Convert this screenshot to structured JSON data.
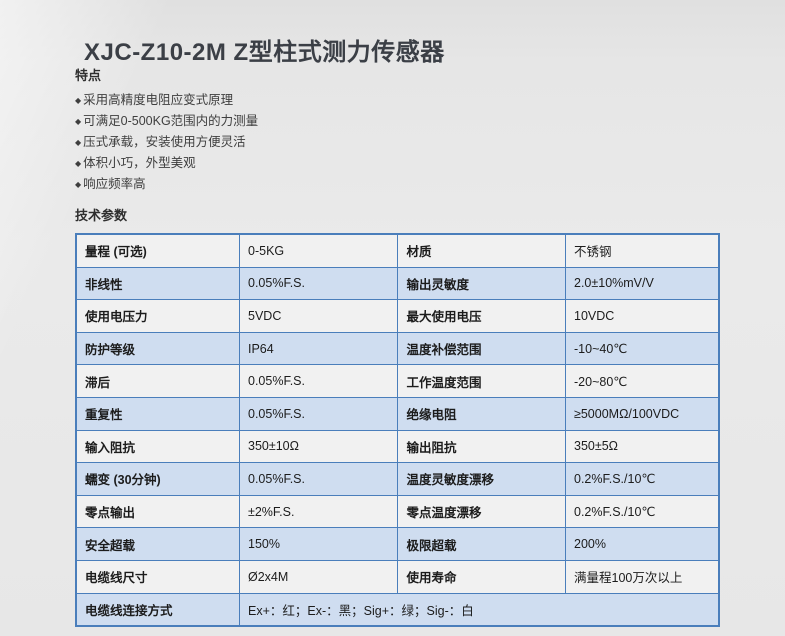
{
  "page": {
    "title": "XJC-Z10-2M Z型柱式测力传感器"
  },
  "features": {
    "heading": "特点",
    "bullet": "◆",
    "items": [
      "采用高精度电阻应变式原理",
      "可满足0-500KG范围内的力测量",
      "压式承载，安装使用方便灵活",
      "体积小巧，外型美观",
      "响应频率高"
    ]
  },
  "specs": {
    "heading": "技术参数",
    "table": {
      "rows": [
        {
          "cells": [
            "量程 (可选)",
            "0-5KG",
            "材质",
            "不锈钢"
          ]
        },
        {
          "cells": [
            "非线性",
            "0.05%F.S.",
            "输出灵敏度",
            "2.0±10%mV/V"
          ]
        },
        {
          "cells": [
            "使用电压力",
            "5VDC",
            "最大使用电压",
            "10VDC"
          ]
        },
        {
          "cells": [
            "防护等级",
            "IP64",
            "温度补偿范围",
            "-10~40℃"
          ]
        },
        {
          "cells": [
            "滞后",
            "0.05%F.S.",
            "工作温度范围",
            "-20~80℃"
          ]
        },
        {
          "cells": [
            "重复性",
            "0.05%F.S.",
            "绝缘电阻",
            "≥5000MΩ/100VDC"
          ]
        },
        {
          "cells": [
            "输入阻抗",
            "350±10Ω",
            "输出阻抗",
            "350±5Ω"
          ]
        },
        {
          "cells": [
            "蠕变 (30分钟)",
            "0.05%F.S.",
            "温度灵敏度漂移",
            "0.2%F.S./10℃"
          ]
        },
        {
          "cells": [
            "零点输出",
            "±2%F.S.",
            "零点温度漂移",
            "0.2%F.S./10℃"
          ]
        },
        {
          "cells": [
            "安全超载",
            "150%",
            "极限超载",
            "200%"
          ]
        },
        {
          "cells": [
            "电缆线尺寸",
            "Ø2x4M",
            "使用寿命",
            "满量程100万次以上"
          ]
        },
        {
          "cells": [
            "电缆线连接方式",
            "Ex+：红；Ex-：黑；Sig+：绿；Sig-：白"
          ],
          "span": 3
        }
      ]
    }
  },
  "colors": {
    "table_border": "#4a7ebb",
    "row_alt_blue": "#cfddf0",
    "row_plain": "#f1f1f1",
    "title_text": "#3b3f46"
  }
}
